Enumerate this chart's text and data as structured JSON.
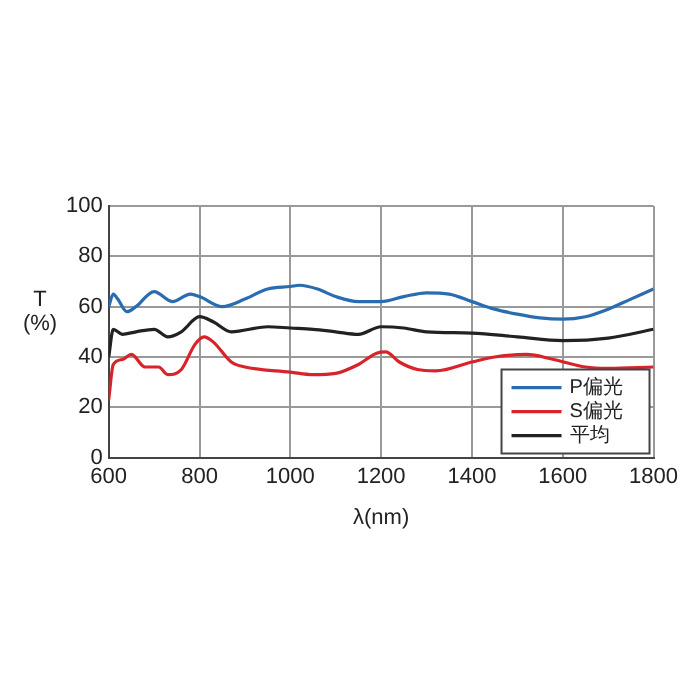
{
  "chart_data": {
    "type": "line",
    "xlabel": "λ(nm)",
    "ylabel": "T\n(%)",
    "xlim": [
      600,
      1800
    ],
    "ylim": [
      0,
      100
    ],
    "xticks": [
      600,
      800,
      1000,
      1200,
      1400,
      1600,
      1800
    ],
    "yticks": [
      0,
      20,
      40,
      60,
      80,
      100
    ],
    "grid": true,
    "legend": "bottom right",
    "marker": "none",
    "line_style": "solid",
    "series": [
      {
        "name": "P偏光",
        "color": "#2a6cb0",
        "x": [
          600,
          610,
          620,
          640,
          660,
          700,
          740,
          780,
          800,
          850,
          900,
          950,
          1000,
          1020,
          1060,
          1100,
          1150,
          1200,
          1250,
          1300,
          1350,
          1400,
          1450,
          1500,
          1550,
          1600,
          1650,
          1700,
          1750,
          1800
        ],
        "values": [
          60,
          65,
          63,
          58,
          60,
          66,
          62,
          65,
          64,
          60,
          63,
          67,
          68,
          68.5,
          67,
          64,
          62,
          62,
          64,
          65.5,
          65,
          62,
          59,
          57,
          55.5,
          55,
          56,
          59,
          63,
          67
        ]
      },
      {
        "name": "S偏光",
        "color": "#d8232a",
        "x": [
          600,
          610,
          630,
          650,
          680,
          710,
          730,
          760,
          790,
          810,
          830,
          870,
          900,
          1000,
          1050,
          1100,
          1150,
          1190,
          1210,
          1240,
          1280,
          1320,
          1400,
          1450,
          1520,
          1580,
          1650,
          1700,
          1800
        ],
        "values": [
          23,
          37,
          39,
          41,
          36,
          36,
          33,
          35,
          45,
          48,
          46,
          38,
          36,
          34,
          33,
          33.5,
          37,
          41.5,
          42,
          38,
          35,
          34.5,
          38,
          40,
          41,
          39,
          36,
          35.5,
          36
        ]
      },
      {
        "name": "平均",
        "color": "#222222",
        "x": [
          600,
          610,
          630,
          660,
          700,
          730,
          760,
          800,
          830,
          870,
          950,
          1000,
          1050,
          1100,
          1150,
          1200,
          1250,
          1300,
          1400,
          1500,
          1600,
          1700,
          1800
        ],
        "values": [
          40,
          51,
          49,
          50,
          51,
          48,
          50,
          56,
          54,
          50,
          52,
          51.5,
          51,
          50,
          49,
          52,
          51.5,
          50,
          49.5,
          48,
          46.5,
          47.5,
          51
        ]
      }
    ]
  }
}
